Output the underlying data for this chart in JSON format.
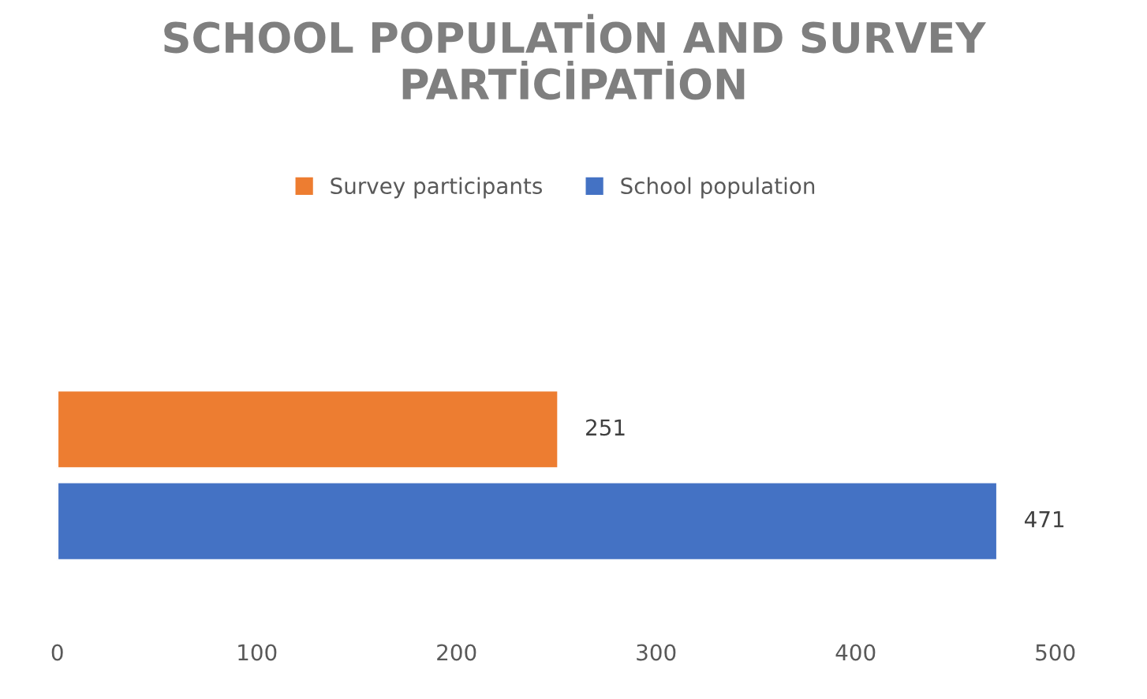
{
  "chart_data": {
    "type": "bar",
    "orientation": "horizontal",
    "title": "SCHOOL POPULATİON AND SURVEY PARTİCİPATİON",
    "categories": [
      null
    ],
    "series": [
      {
        "name": "Survey participants",
        "color": "#ed7d31",
        "values": [
          251
        ]
      },
      {
        "name": "School population",
        "color": "#4472c4",
        "values": [
          471
        ]
      }
    ],
    "xlim": [
      0,
      500
    ],
    "xticks": [
      0,
      100,
      200,
      300,
      400,
      500
    ],
    "grid": false,
    "legend": "top",
    "data_labels": true
  }
}
